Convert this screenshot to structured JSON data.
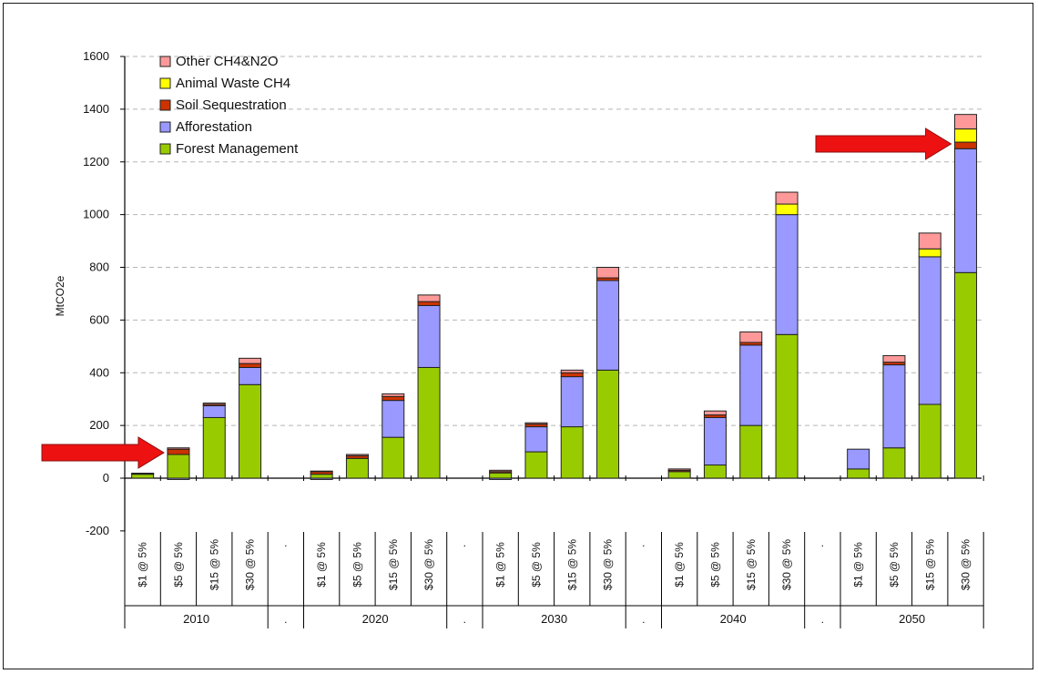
{
  "chart_data": {
    "type": "bar",
    "stacked": true,
    "ylabel": "MtCO2e",
    "ylim": [
      -200,
      1600
    ],
    "yticks": [
      1600,
      1400,
      1200,
      1000,
      800,
      600,
      400,
      200,
      0,
      -200
    ],
    "grid": "horizontal dashed",
    "legend_placement": "top-left",
    "groups": [
      {
        "year": "2010",
        "categories": [
          "$1 @ 5%",
          "$5 @ 5%",
          "$15 @ 5%",
          "$30 @ 5%"
        ]
      },
      {
        "year": "2020",
        "categories": [
          "$1 @ 5%",
          "$5 @ 5%",
          "$15 @ 5%",
          "$30 @ 5%"
        ]
      },
      {
        "year": "2030",
        "categories": [
          "$1 @ 5%",
          "$5 @ 5%",
          "$15 @ 5%",
          "$30 @ 5%"
        ]
      },
      {
        "year": "2040",
        "categories": [
          "$1 @ 5%",
          "$5 @ 5%",
          "$15 @ 5%",
          "$30 @ 5%"
        ]
      },
      {
        "year": "2050",
        "categories": [
          "$1 @ 5%",
          "$5 @ 5%",
          "$15 @ 5%",
          "$30 @ 5%"
        ]
      }
    ],
    "separator_label": ".",
    "series": [
      {
        "name": "Forest Management",
        "color": "#99cc00",
        "values": [
          [
            15,
            90,
            230,
            355
          ],
          [
            15,
            75,
            155,
            420
          ],
          [
            20,
            100,
            195,
            410
          ],
          [
            25,
            50,
            200,
            545
          ],
          [
            35,
            115,
            280,
            780
          ]
        ]
      },
      {
        "name": "Afforestation",
        "color": "#9999ff",
        "values": [
          [
            0,
            0,
            45,
            65
          ],
          [
            0,
            0,
            140,
            235
          ],
          [
            0,
            95,
            190,
            340
          ],
          [
            0,
            180,
            305,
            455
          ],
          [
            75,
            315,
            560,
            470
          ]
        ]
      },
      {
        "name": "Soil Sequestration",
        "color": "#cc3300",
        "values": [
          [
            2,
            20,
            5,
            15
          ],
          [
            10,
            10,
            15,
            15
          ],
          [
            5,
            10,
            15,
            10
          ],
          [
            5,
            10,
            10,
            0
          ],
          [
            0,
            10,
            0,
            25
          ]
        ]
      },
      {
        "name": "Animal Waste CH4",
        "color": "#ffff00",
        "values": [
          [
            0,
            0,
            0,
            0
          ],
          [
            0,
            0,
            0,
            0
          ],
          [
            0,
            0,
            0,
            0
          ],
          [
            0,
            0,
            0,
            40
          ],
          [
            0,
            0,
            30,
            50
          ]
        ]
      },
      {
        "name": "Other CH4&N2O",
        "color": "#ff9999",
        "values": [
          [
            2,
            5,
            5,
            20
          ],
          [
            2,
            5,
            10,
            25
          ],
          [
            5,
            5,
            10,
            40
          ],
          [
            5,
            15,
            40,
            45
          ],
          [
            0,
            25,
            60,
            55
          ]
        ]
      }
    ],
    "negative_values": [
      [
        0,
        -5,
        0,
        0
      ],
      [
        -5,
        0,
        0,
        0
      ],
      [
        -5,
        0,
        0,
        0
      ],
      [
        0,
        0,
        0,
        0
      ],
      [
        0,
        0,
        0,
        0
      ]
    ],
    "annotations": [
      {
        "type": "arrow",
        "color": "#ee1111",
        "points_to": "2010 $5 @ 5%"
      },
      {
        "type": "arrow",
        "color": "#ee1111",
        "points_to": "2050 $30 @ 5%"
      }
    ]
  }
}
